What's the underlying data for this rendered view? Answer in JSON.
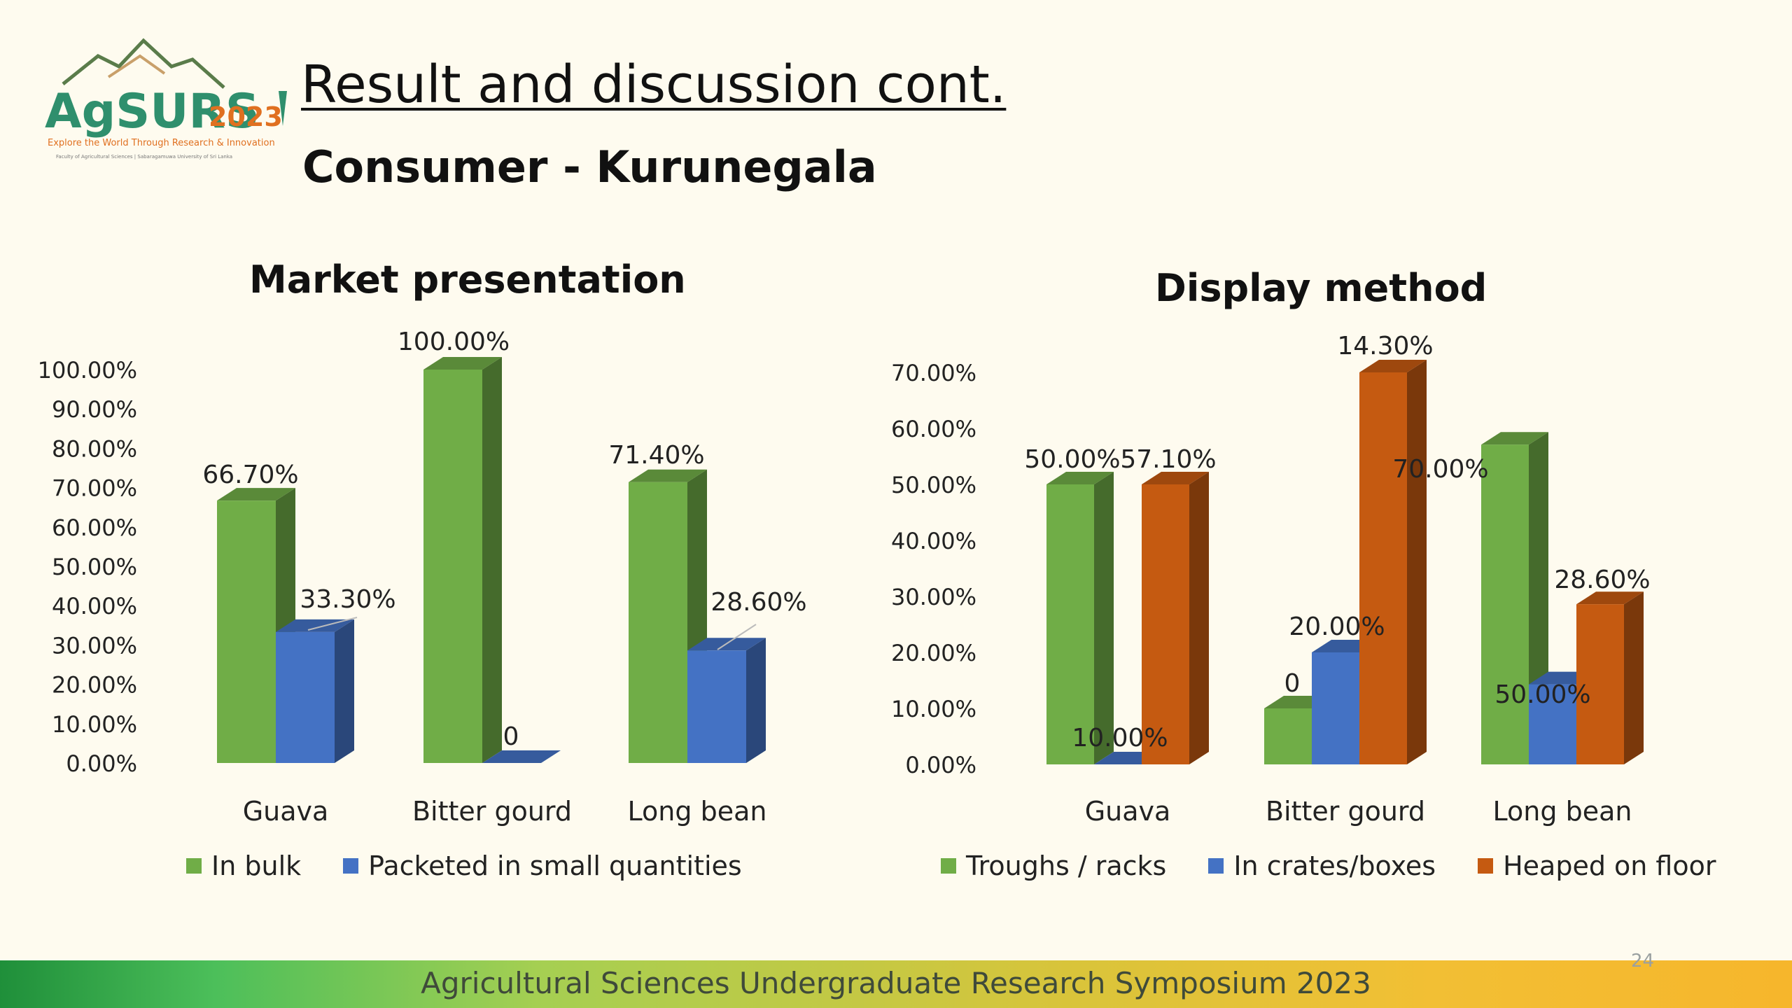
{
  "slide": {
    "title": "Result and discussion cont.",
    "subtitle": "Consumer  - Kurunegala",
    "footer": "Agricultural Sciences Undergraduate Research Symposium 2023",
    "page_number": "24"
  },
  "logo": {
    "name": "AgSURS",
    "year": "2023",
    "tagline": "Explore the World Through Research & Innovation",
    "affiliation": "Faculty of Agricultural Sciences | Sabaragamuwa University of Sri Lanka"
  },
  "colors": {
    "green": "#70ad47",
    "blue": "#4472c4",
    "orange": "#c55a11"
  },
  "chart_data": [
    {
      "type": "bar",
      "title": "Market presentation",
      "categories": [
        "Guava",
        "Bitter gourd",
        "Long bean"
      ],
      "series": [
        {
          "name": "In bulk",
          "color": "#70ad47",
          "values": [
            66.7,
            100.0,
            71.4
          ],
          "labels": [
            "66.70%",
            "100.00%",
            "71.40%"
          ]
        },
        {
          "name": "Packeted in small quantities",
          "color": "#4472c4",
          "values": [
            33.3,
            0,
            28.6
          ],
          "labels": [
            "33.30%",
            "0",
            "28.60%"
          ]
        }
      ],
      "ylim": [
        0,
        100
      ],
      "ticks": [
        "0.00%",
        "10.00%",
        "20.00%",
        "30.00%",
        "40.00%",
        "50.00%",
        "60.00%",
        "70.00%",
        "80.00%",
        "90.00%",
        "100.00%"
      ],
      "legend": "bottom",
      "grid": false
    },
    {
      "type": "bar",
      "title": "Display method",
      "categories": [
        "Guava",
        "Bitter gourd",
        "Long bean"
      ],
      "series": [
        {
          "name": "Troughs / racks",
          "color": "#70ad47",
          "values": [
            50.0,
            10.0,
            57.1
          ],
          "labels": [
            "50.00%",
            "10.00%",
            "57.10%"
          ]
        },
        {
          "name": "In crates/boxes",
          "color": "#4472c4",
          "values": [
            0,
            20.0,
            14.3
          ],
          "labels": [
            "0",
            "20.00%",
            "14.30%"
          ]
        },
        {
          "name": "Heaped on floor",
          "color": "#c55a11",
          "values": [
            50.0,
            70.0,
            28.6
          ],
          "labels": [
            "50.00%",
            "70.00%",
            "28.60%"
          ]
        }
      ],
      "ylim": [
        0,
        70
      ],
      "ticks": [
        "0.00%",
        "10.00%",
        "20.00%",
        "30.00%",
        "40.00%",
        "50.00%",
        "60.00%",
        "70.00%"
      ],
      "legend": "bottom",
      "grid": false
    }
  ]
}
